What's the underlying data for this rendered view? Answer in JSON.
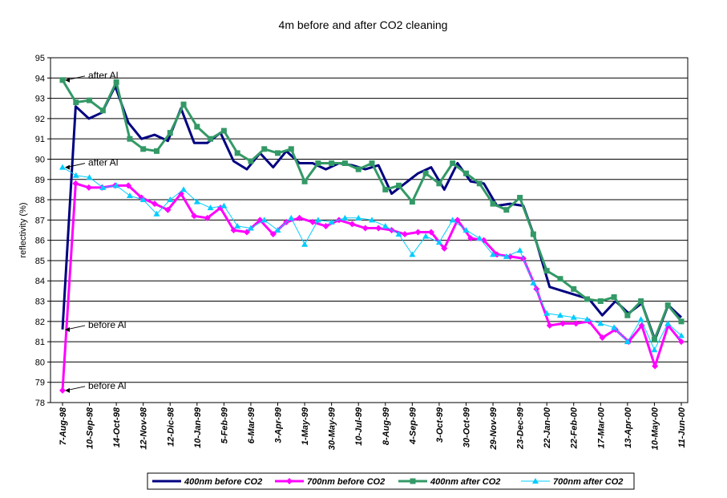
{
  "chart_data": {
    "type": "line",
    "title": "4m before and after CO2 cleaning",
    "xlabel": "",
    "ylabel": "reflectivity (%)",
    "ylim": [
      78,
      95
    ],
    "yticks": [
      78,
      79,
      80,
      81,
      82,
      83,
      84,
      85,
      86,
      87,
      88,
      89,
      90,
      91,
      92,
      93,
      94,
      95
    ],
    "grid": "horizontal",
    "legend_position": "bottom",
    "xtick_labels": [
      "7-Aug-98",
      "10-Sep-98",
      "14-Oct-98",
      "12-Nov-98",
      "12-Dic-98",
      "10-Jan-99",
      "5-Feb-99",
      "6-Mar-99",
      "3-Apr-99",
      "1-May-99",
      "30-May-99",
      "10-Jul-99",
      "8-Aug-99",
      "4-Sep-99",
      "3-Oct-99",
      "30-Oct-99",
      "29-Nov-99",
      "23-Dec-99",
      "22-Jan-00",
      "22-Feb-00",
      "17-Mar-00",
      "13-Apr-00",
      "10-May-00",
      "11-Jun-00"
    ],
    "series": [
      {
        "name": "400nm before CO2",
        "color": "#000080",
        "marker": "none",
        "width": 3,
        "values": [
          81.6,
          92.6,
          92.0,
          92.3,
          93.6,
          91.8,
          91.0,
          91.2,
          90.9,
          92.5,
          90.8,
          90.8,
          91.3,
          89.9,
          89.5,
          90.3,
          89.6,
          90.4,
          89.8,
          89.8,
          89.5,
          89.8,
          89.7,
          89.5,
          89.7,
          88.3,
          88.8,
          89.3,
          89.6,
          88.5,
          89.8,
          88.9,
          88.8,
          87.7,
          87.8,
          87.7,
          85.9,
          83.7,
          83.5,
          83.3,
          83.1,
          82.3,
          83.0,
          82.4,
          82.9,
          81.1,
          82.8,
          82.2
        ]
      },
      {
        "name": "700nm before CO2",
        "color": "#ff00ff",
        "marker": "diamond",
        "width": 3,
        "values": [
          78.6,
          88.8,
          88.6,
          88.6,
          88.7,
          88.7,
          88.1,
          87.8,
          87.5,
          88.3,
          87.2,
          87.1,
          87.6,
          86.5,
          86.4,
          87.0,
          86.3,
          86.9,
          87.1,
          86.9,
          86.7,
          87.0,
          86.8,
          86.6,
          86.6,
          86.5,
          86.3,
          86.4,
          86.4,
          85.6,
          87.0,
          86.1,
          86.0,
          85.3,
          85.2,
          85.1,
          83.6,
          81.8,
          81.9,
          81.9,
          82.0,
          81.2,
          81.6,
          81.0,
          81.8,
          79.8,
          81.8,
          81.0
        ]
      },
      {
        "name": "400nm after CO2",
        "color": "#339966",
        "marker": "square",
        "width": 3,
        "values": [
          93.9,
          92.8,
          92.9,
          92.4,
          93.8,
          91.0,
          90.5,
          90.4,
          91.3,
          92.7,
          91.6,
          91.0,
          91.4,
          90.3,
          89.9,
          90.5,
          90.3,
          90.5,
          88.9,
          89.8,
          89.8,
          89.8,
          89.5,
          89.8,
          88.5,
          88.7,
          87.9,
          89.3,
          88.8,
          89.8,
          89.3,
          88.8,
          87.8,
          87.5,
          88.1,
          86.3,
          84.5,
          84.1,
          83.6,
          83.1,
          83.0,
          83.2,
          82.3,
          83.0,
          81.1,
          82.8,
          82.0
        ]
      },
      {
        "name": "700nm after CO2",
        "color": "#00ccff",
        "marker": "triangle",
        "width": 1,
        "values": [
          89.6,
          89.2,
          89.1,
          88.6,
          88.7,
          88.2,
          88.0,
          87.3,
          88.0,
          88.5,
          87.9,
          87.6,
          87.7,
          86.7,
          86.6,
          87.0,
          86.5,
          87.1,
          85.8,
          87.0,
          86.9,
          87.1,
          87.1,
          87.0,
          86.7,
          86.3,
          85.3,
          86.2,
          85.9,
          87.0,
          86.5,
          86.1,
          85.3,
          85.2,
          85.5,
          83.9,
          82.4,
          82.3,
          82.2,
          82.1,
          81.9,
          81.7,
          81.0,
          82.1,
          80.6,
          81.9,
          81.3
        ]
      }
    ],
    "annotations": [
      {
        "text": "after Al",
        "series": 2,
        "point": 0
      },
      {
        "text": "after Al",
        "series": 3,
        "point": 0
      },
      {
        "text": "before Al",
        "series": 0,
        "point": 0
      },
      {
        "text": "before Al",
        "series": 1,
        "point": 0
      }
    ]
  }
}
